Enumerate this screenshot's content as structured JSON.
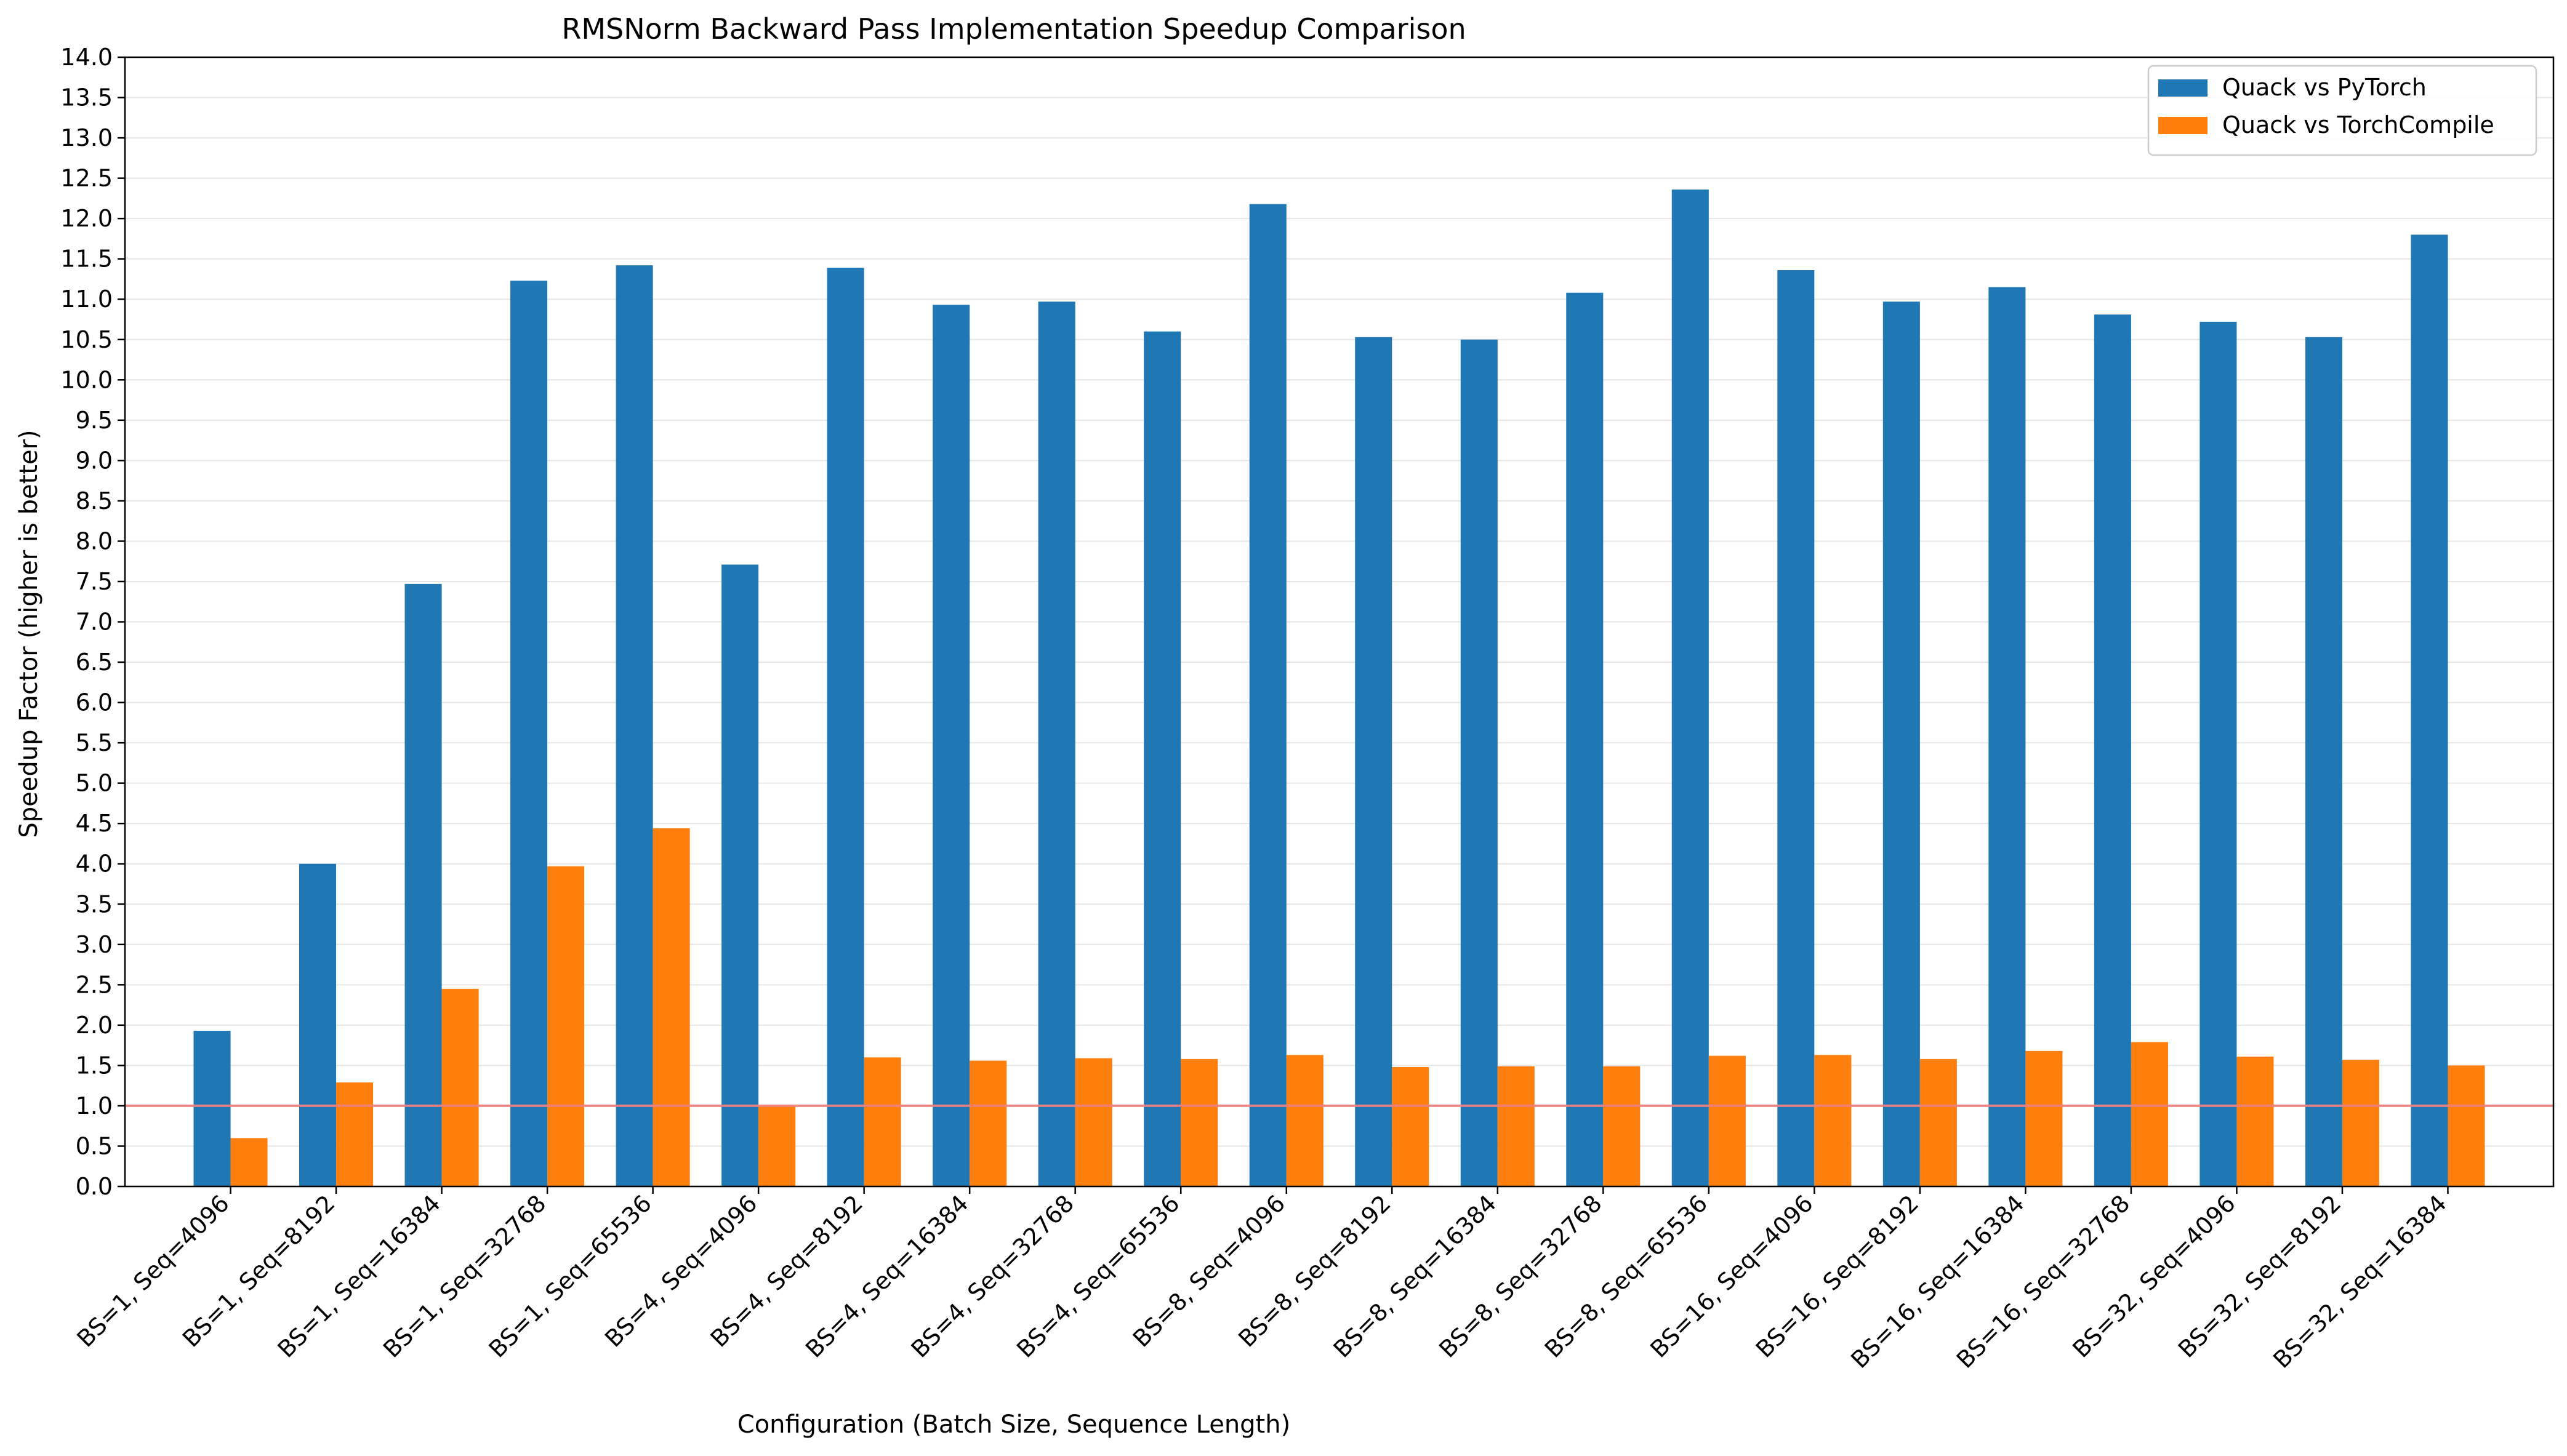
{
  "chart_data": {
    "type": "bar",
    "title": "RMSNorm Backward Pass Implementation Speedup Comparison",
    "xlabel": "Configuration (Batch Size, Sequence Length)",
    "ylabel": "Speedup Factor (higher is better)",
    "ylim": [
      0,
      14
    ],
    "ytick_step": 0.5,
    "grid": "y",
    "legend_position": "top-right",
    "reference_line": {
      "y": 1.0,
      "color": "#f08080"
    },
    "categories": [
      "BS=1, Seq=4096",
      "BS=1, Seq=8192",
      "BS=1, Seq=16384",
      "BS=1, Seq=32768",
      "BS=1, Seq=65536",
      "BS=4, Seq=4096",
      "BS=4, Seq=8192",
      "BS=4, Seq=16384",
      "BS=4, Seq=32768",
      "BS=4, Seq=65536",
      "BS=8, Seq=4096",
      "BS=8, Seq=8192",
      "BS=8, Seq=16384",
      "BS=8, Seq=32768",
      "BS=8, Seq=65536",
      "BS=16, Seq=4096",
      "BS=16, Seq=8192",
      "BS=16, Seq=16384",
      "BS=16, Seq=32768",
      "BS=32, Seq=4096",
      "BS=32, Seq=8192",
      "BS=32, Seq=16384"
    ],
    "series": [
      {
        "name": "Quack vs PyTorch",
        "color": "#1f77b4",
        "values": [
          1.93,
          4.0,
          7.47,
          11.23,
          11.42,
          7.71,
          11.39,
          10.93,
          10.97,
          10.6,
          12.18,
          10.53,
          10.5,
          11.08,
          12.36,
          11.36,
          10.97,
          11.15,
          10.81,
          10.72,
          10.53,
          11.8
        ]
      },
      {
        "name": "Quack vs TorchCompile",
        "color": "#ff7f0e",
        "values": [
          0.6,
          1.29,
          2.45,
          3.97,
          4.44,
          1.0,
          1.6,
          1.56,
          1.59,
          1.58,
          1.63,
          1.48,
          1.49,
          1.49,
          1.62,
          1.63,
          1.58,
          1.68,
          1.79,
          1.61,
          1.57,
          1.5
        ]
      }
    ]
  }
}
